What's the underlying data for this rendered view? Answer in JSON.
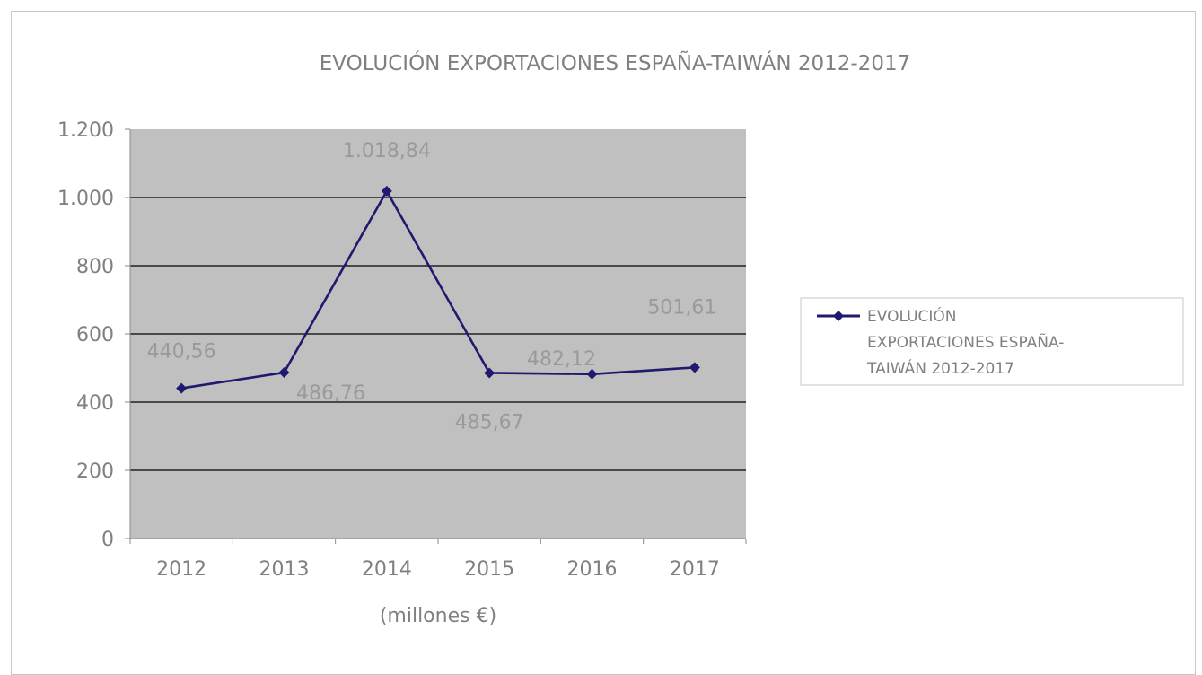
{
  "chart_data": {
    "type": "line",
    "title": "EVOLUCIÓN EXPORTACIONES ESPAÑA-TAIWÁN 2012-2017",
    "xlabel": "(millones €)",
    "ylabel": "",
    "categories": [
      "2012",
      "2013",
      "2014",
      "2015",
      "2016",
      "2017"
    ],
    "series": [
      {
        "name": "EVOLUCIÓN EXPORTACIONES ESPAÑA-TAIWÁN 2012-2017",
        "values": [
          440.56,
          486.76,
          1018.84,
          485.67,
          482.12,
          501.61
        ],
        "labels": [
          "440,56",
          "486,76",
          "1.018,84",
          "485,67",
          "482,12",
          "501,61"
        ],
        "color": "#1f1a6e"
      }
    ],
    "ylim": [
      0,
      1200
    ],
    "yticks": [
      0,
      200,
      400,
      600,
      800,
      1000,
      1200
    ],
    "ytick_labels": [
      "0",
      "200",
      "400",
      "600",
      "800",
      "1.000",
      "1.200"
    ],
    "grid": true,
    "plot_background": "#c0c0c0",
    "legend_lines": [
      "EVOLUCIÓN",
      "EXPORTACIONES ESPAÑA-",
      "TAIWÁN 2012-2017"
    ],
    "legend_position": "right"
  }
}
